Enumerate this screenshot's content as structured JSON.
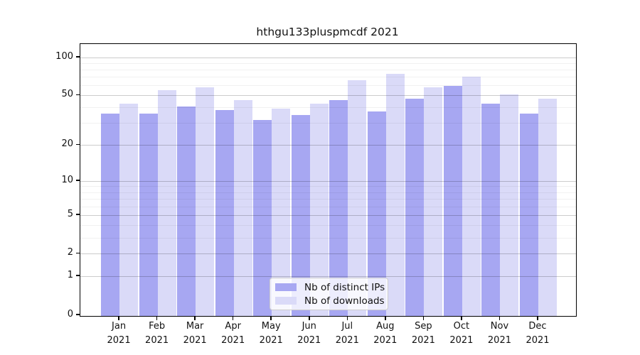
{
  "chart": {
    "title": "hthgu133pluspmcdf 2021"
  },
  "chart_data": {
    "type": "bar",
    "title": "hthgu133pluspmcdf 2021",
    "categories": [
      "Jan 2021",
      "Feb 2021",
      "Mar 2021",
      "Apr 2021",
      "May 2021",
      "Jun 2021",
      "Jul 2021",
      "Aug 2021",
      "Sep 2021",
      "Oct 2021",
      "Nov 2021",
      "Dec 2021"
    ],
    "series": [
      {
        "name": "Nb of distinct IPs",
        "color": "#a7a7f2",
        "values": [
          36,
          36,
          41,
          38,
          32,
          35,
          46,
          37,
          47,
          59,
          43,
          36
        ]
      },
      {
        "name": "Nb of downloads",
        "color": "#dadaf8",
        "values": [
          43,
          55,
          58,
          46,
          39,
          43,
          66,
          74,
          58,
          70,
          51,
          47
        ]
      }
    ],
    "xlabel": "",
    "ylabel": "",
    "yscale": "log1p",
    "ylim": [
      0,
      127
    ],
    "y_major_ticks": [
      0,
      1,
      2,
      5,
      10,
      20,
      50,
      100
    ],
    "y_minor_gridlines": [
      3,
      4,
      6,
      7,
      8,
      9,
      30,
      40,
      60,
      70,
      80,
      90
    ],
    "grid": true,
    "legend_position": "lower-center-inside"
  }
}
